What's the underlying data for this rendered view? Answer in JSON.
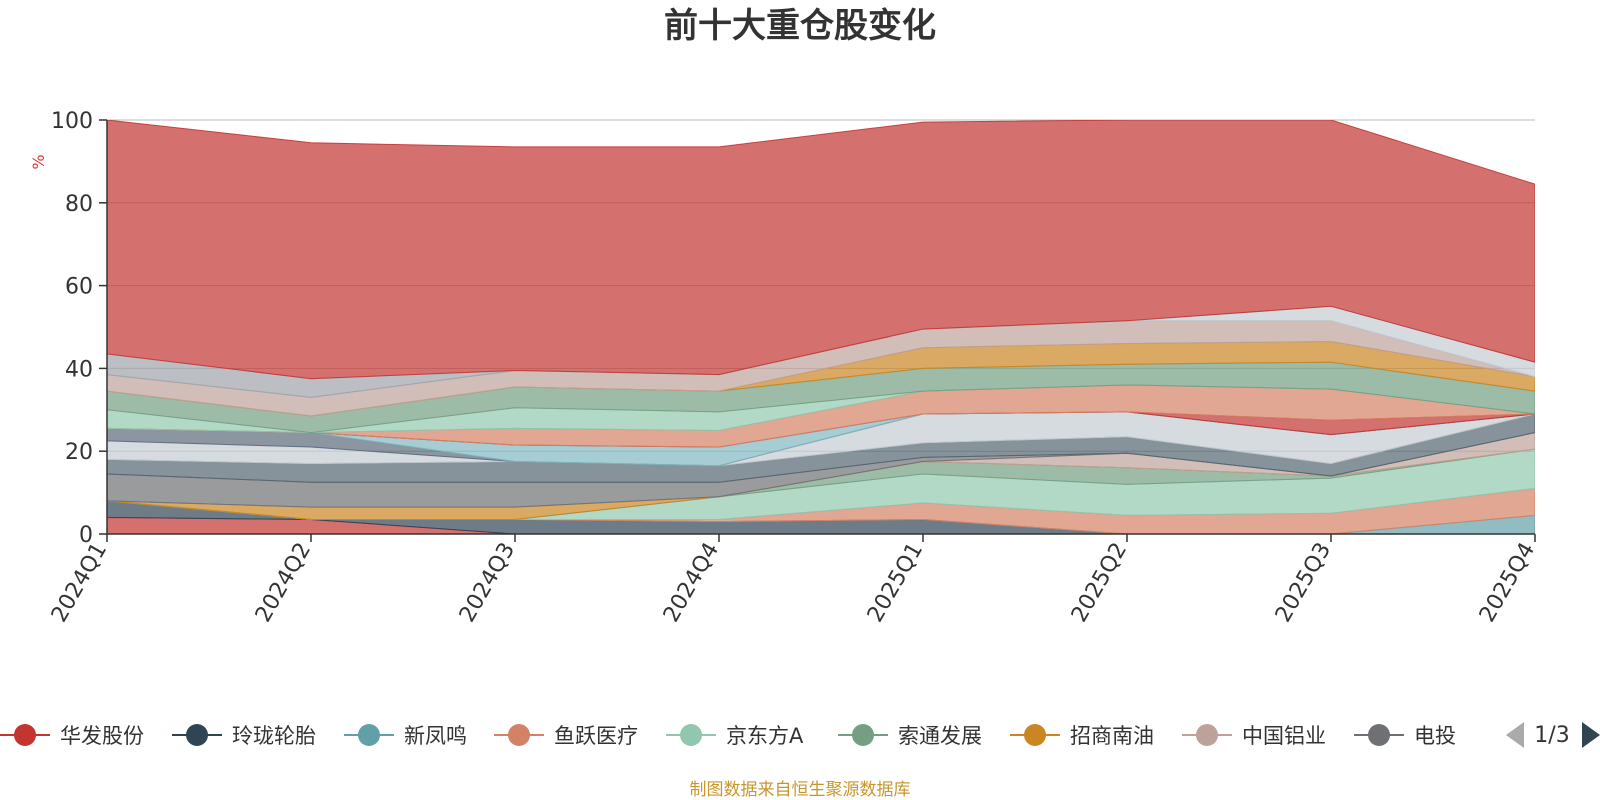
{
  "chart_data": {
    "type": "area",
    "stacked": true,
    "title": "前十大重仓股变化",
    "ylabel": "%",
    "ylim": [
      0,
      100
    ],
    "yticks": [
      "0",
      "20",
      "40",
      "60",
      "80",
      "100"
    ],
    "categories": [
      "2024Q1",
      "2024Q2",
      "2024Q3",
      "2024Q4",
      "2025Q1",
      "2025Q2",
      "2025Q3",
      "2025Q4"
    ],
    "grid": true,
    "series": [
      {
        "name": "华发股份",
        "color": "#c23531",
        "values": [
          4.0,
          3.5,
          0.0,
          0.0,
          0.0,
          0.0,
          0.0,
          0.0
        ]
      },
      {
        "name": "玲珑轮胎",
        "color": "#2f4554",
        "values": [
          4.0,
          0.0,
          3.5,
          3.0,
          3.5,
          0.0,
          0.0,
          0.0
        ]
      },
      {
        "name": "新凤鸣",
        "color": "#61a0a8",
        "values": [
          0.0,
          0.0,
          0.0,
          0.0,
          0.0,
          0.0,
          0.0,
          4.5
        ]
      },
      {
        "name": "鱼跃医疗",
        "color": "#d48265",
        "values": [
          0.0,
          0.0,
          0.0,
          0.5,
          4.0,
          4.5,
          5.0,
          6.5
        ]
      },
      {
        "name": "京东方A",
        "color": "#91c7ae",
        "values": [
          0.0,
          0.0,
          0.0,
          5.5,
          7.0,
          7.5,
          8.5,
          9.5
        ]
      },
      {
        "name": "索通发展",
        "color": "#749f83",
        "values": [
          0.0,
          0.0,
          0.0,
          0.0,
          3.0,
          4.0,
          0.5,
          0.0
        ]
      },
      {
        "name": "招商南油",
        "color": "#ca8622",
        "values": [
          0.0,
          3.0,
          3.0,
          0.0,
          0.0,
          0.0,
          0.0,
          0.0
        ]
      },
      {
        "name": "中国铝业",
        "color": "#bda29a",
        "values": [
          0.0,
          0.0,
          0.0,
          0.0,
          0.0,
          3.5,
          0.0,
          4.0
        ]
      },
      {
        "name": "电投",
        "color": "#6e7074",
        "values": [
          6.5,
          6.0,
          6.0,
          3.5,
          1.0,
          0.0,
          0.0,
          0.0
        ]
      },
      {
        "name": "",
        "color": "#546570",
        "values": [
          3.5,
          4.5,
          5.0,
          4.0,
          3.5,
          4.0,
          3.0,
          4.5
        ]
      },
      {
        "name": "",
        "color": "#c4ccd3",
        "values": [
          4.5,
          4.0,
          0.0,
          0.0,
          7.0,
          6.0,
          7.0,
          0.0
        ]
      },
      {
        "name": "",
        "color": "#5b6a79",
        "values": [
          3.0,
          3.5,
          0.0,
          0.0,
          0.0,
          0.0,
          0.0,
          0.0
        ]
      },
      {
        "name": "",
        "color": "#7fb8c0",
        "values": [
          0.0,
          0.0,
          4.0,
          4.5,
          0.0,
          0.0,
          0.0,
          0.0
        ]
      },
      {
        "name": "",
        "color": "#c23531",
        "values": [
          0.0,
          0.0,
          0.0,
          0.0,
          0.0,
          0.0,
          3.5,
          0.0
        ]
      },
      {
        "name": "",
        "color": "#d48265",
        "values": [
          0.0,
          0.0,
          4.0,
          4.0,
          5.5,
          6.5,
          7.5,
          0.0
        ]
      },
      {
        "name": "",
        "color": "#91c7ae",
        "values": [
          4.5,
          0.0,
          5.0,
          4.5,
          0.0,
          0.0,
          0.0,
          0.0
        ]
      },
      {
        "name": "",
        "color": "#749f83",
        "values": [
          4.5,
          4.0,
          5.0,
          5.0,
          5.5,
          5.0,
          6.5,
          5.5
        ]
      },
      {
        "name": "",
        "color": "#ca8622",
        "values": [
          0.0,
          0.0,
          0.0,
          0.0,
          5.0,
          5.0,
          5.0,
          3.5
        ]
      },
      {
        "name": "",
        "color": "#bda29a",
        "values": [
          4.0,
          4.5,
          4.0,
          4.0,
          4.5,
          5.5,
          5.0,
          0.0
        ]
      },
      {
        "name": "",
        "color": "#9ea4ab",
        "values": [
          5.0,
          4.5,
          0.0,
          0.0,
          0.0,
          0.0,
          0.0,
          0.0
        ]
      },
      {
        "name": "",
        "color": "#c4ccd3",
        "values": [
          0.0,
          0.0,
          0.0,
          0.0,
          0.0,
          0.0,
          3.5,
          3.5
        ]
      },
      {
        "name": "",
        "color": "#c23531",
        "values": [
          56.5,
          57.0,
          54.0,
          55.0,
          50.0,
          48.5,
          45.0,
          43.0
        ]
      }
    ]
  },
  "legend": {
    "items": [
      {
        "label": "华发股份",
        "color": "#c23531",
        "icon": "circle-marker-icon"
      },
      {
        "label": "玲珑轮胎",
        "color": "#2f4554",
        "icon": "circle-marker-icon"
      },
      {
        "label": "新凤鸣",
        "color": "#61a0a8",
        "icon": "circle-marker-icon"
      },
      {
        "label": "鱼跃医疗",
        "color": "#d48265",
        "icon": "circle-marker-icon"
      },
      {
        "label": "京东方A",
        "color": "#91c7ae",
        "icon": "circle-marker-icon"
      },
      {
        "label": "索通发展",
        "color": "#749f83",
        "icon": "circle-marker-icon"
      },
      {
        "label": "招商南油",
        "color": "#ca8622",
        "icon": "circle-marker-icon"
      },
      {
        "label": "中国铝业",
        "color": "#bda29a",
        "icon": "circle-marker-icon"
      },
      {
        "label": "电投",
        "color": "#6e7074",
        "icon": "circle-marker-icon"
      }
    ],
    "page": "1/3",
    "prev_icon": "triangle-left-icon",
    "next_icon": "triangle-right-icon"
  },
  "footer": {
    "source": "制图数据来自恒生聚源数据库"
  }
}
